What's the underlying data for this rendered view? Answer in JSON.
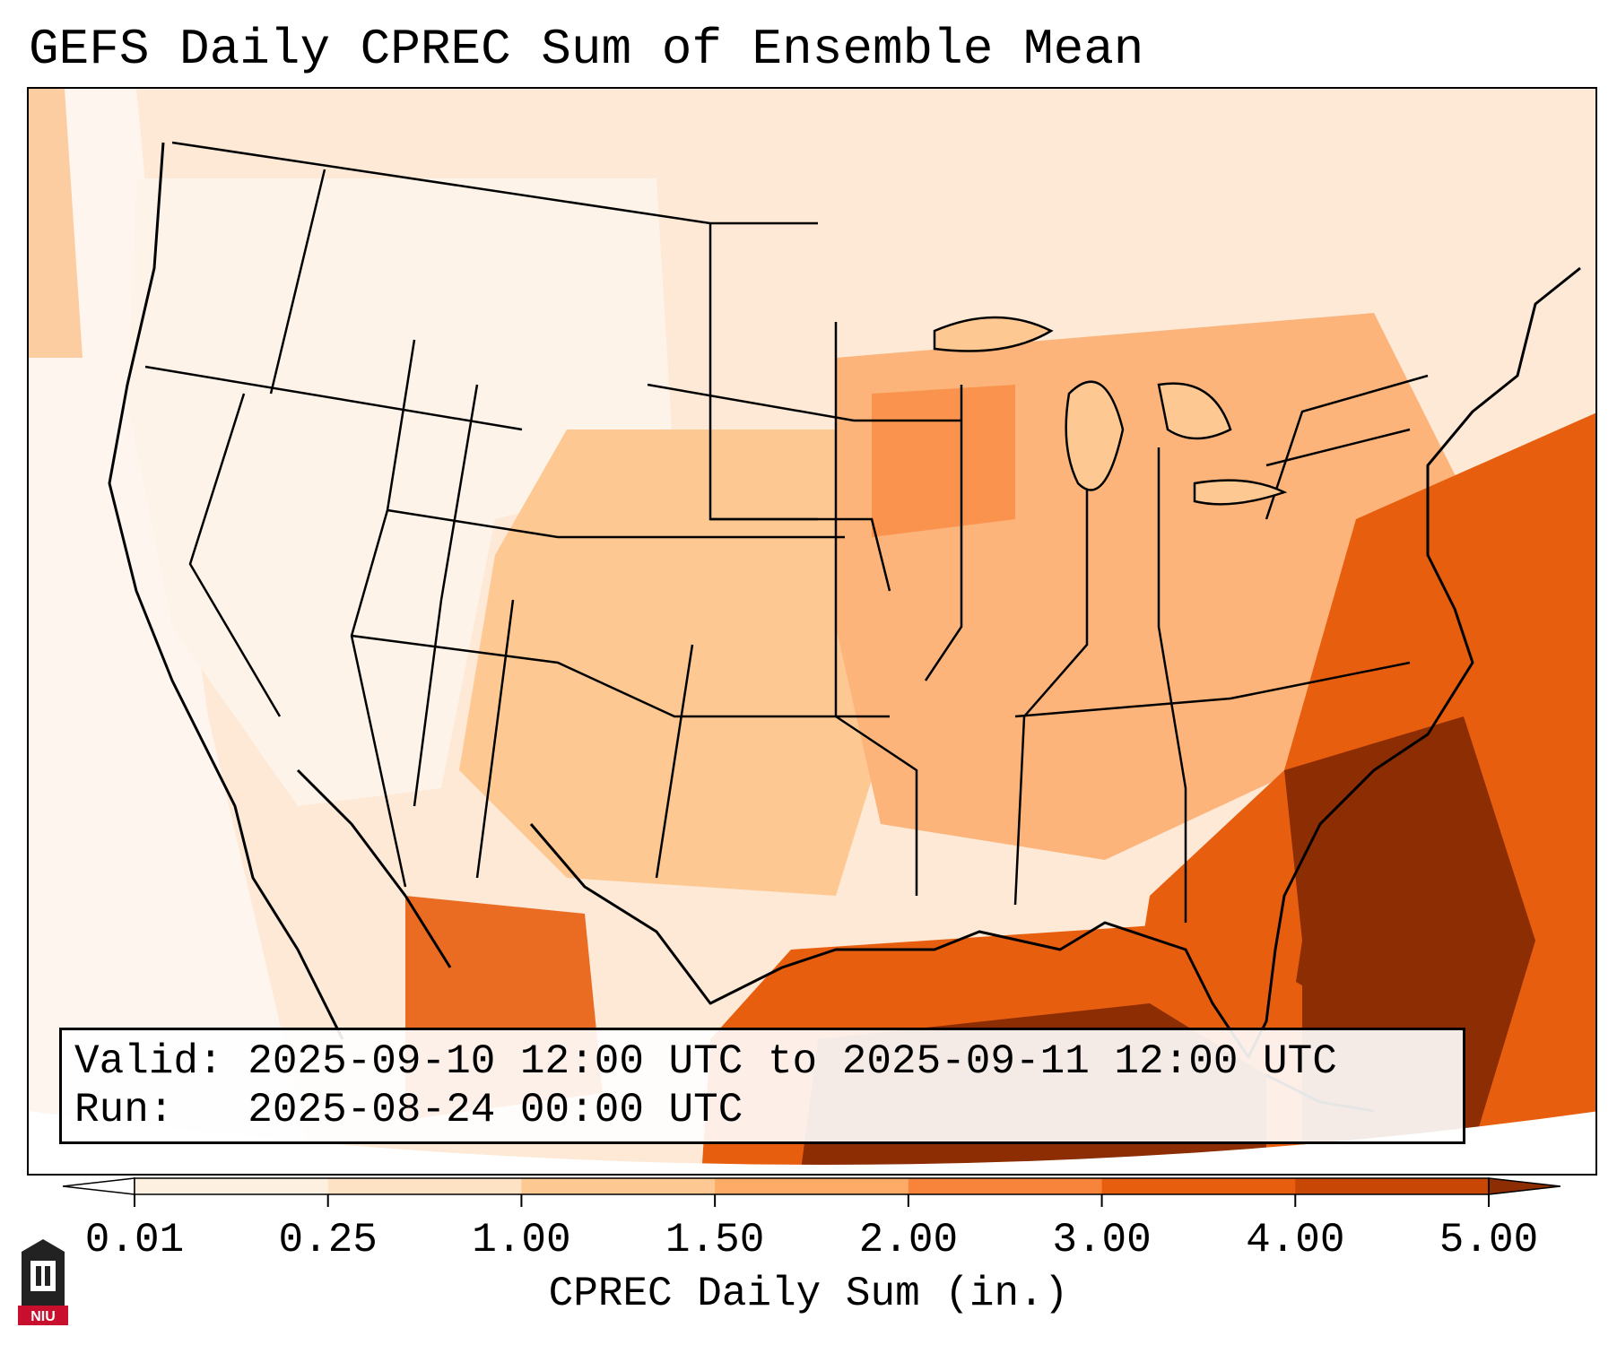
{
  "title": "GEFS Daily CPREC Sum of Ensemble Mean",
  "info": {
    "valid_label": "Valid:",
    "valid_value": "2025-09-10 12:00 UTC to 2025-09-11 12:00 UTC",
    "run_label": "Run:",
    "run_value": "2025-08-24 00:00 UTC"
  },
  "colorbar": {
    "label": "CPREC Daily Sum (in.)",
    "ticks": [
      "0.01",
      "0.25",
      "1.00",
      "1.50",
      "2.00",
      "3.00",
      "4.00",
      "5.00"
    ],
    "colors": [
      "#fef0e0",
      "#fde2c4",
      "#fdc892",
      "#fdab67",
      "#f8843c",
      "#e85e0f",
      "#c84704",
      "#8c2d04"
    ],
    "under_color": "#ffffff",
    "over_color": "#8c2d04"
  },
  "map": {
    "region": "CONUS",
    "ocean_color": "#fde9d6",
    "outer_color": "#ffffff"
  },
  "logo": {
    "text": "NIU",
    "accent_color": "#c8102e"
  }
}
